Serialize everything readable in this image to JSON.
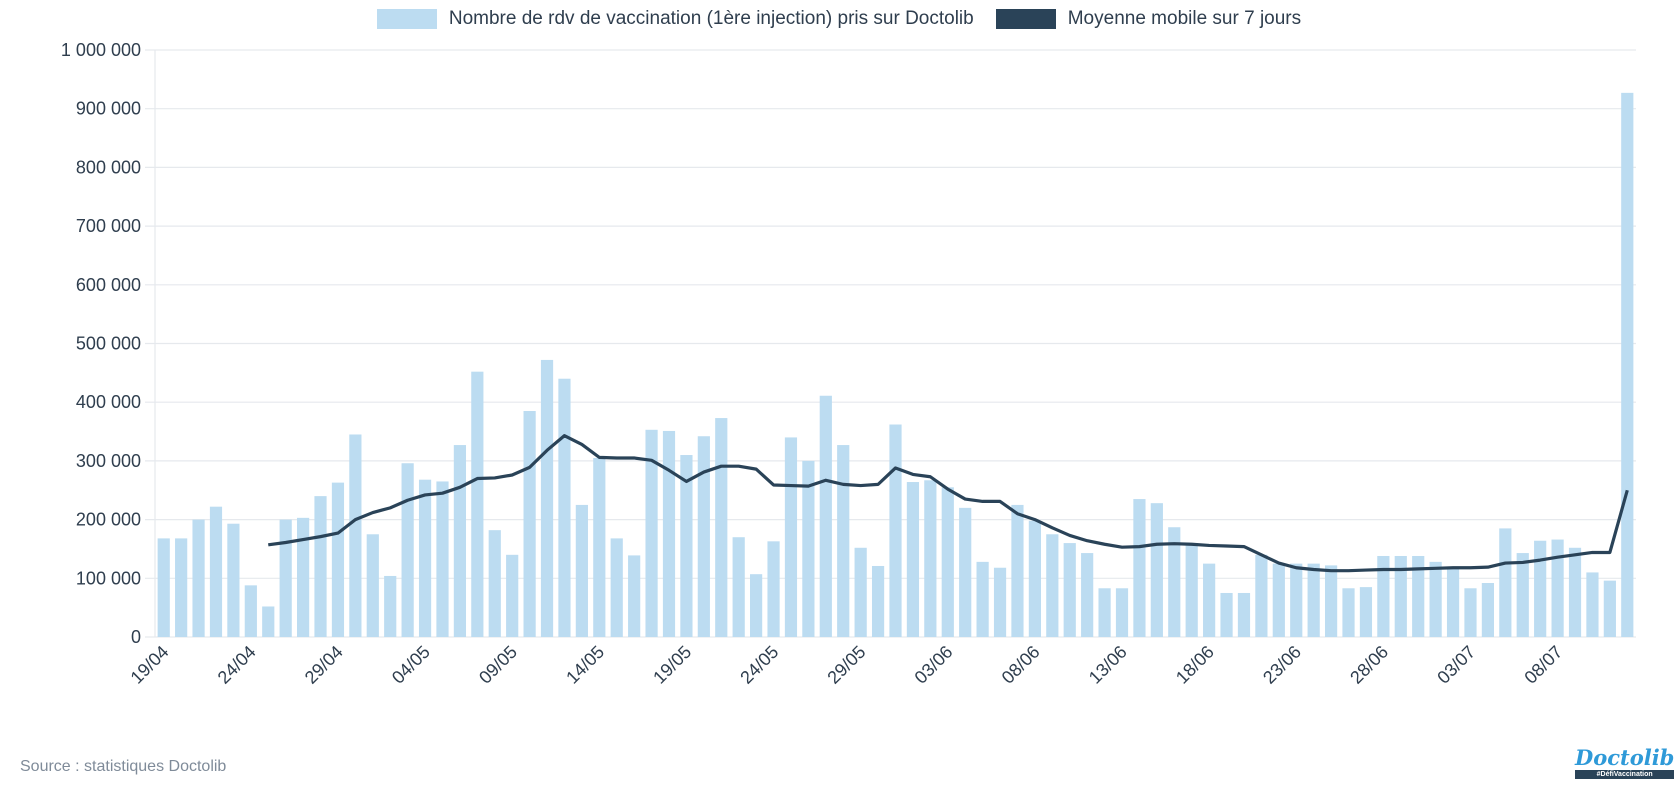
{
  "chart_data": {
    "type": "bar",
    "title": "",
    "xlabel": "",
    "ylabel": "",
    "ylim": [
      0,
      1000000
    ],
    "grid": true,
    "legend_position": "top-center",
    "yticks": [
      0,
      100000,
      200000,
      300000,
      400000,
      500000,
      600000,
      700000,
      800000,
      900000,
      1000000
    ],
    "ytick_labels": [
      "0",
      "100 000",
      "200 000",
      "300 000",
      "400 000",
      "500 000",
      "600 000",
      "700 000",
      "800 000",
      "900 000",
      "1 000 000"
    ],
    "categories": [
      "19/04",
      "20/04",
      "21/04",
      "22/04",
      "23/04",
      "24/04",
      "25/04",
      "26/04",
      "27/04",
      "28/04",
      "29/04",
      "30/04",
      "01/05",
      "02/05",
      "03/05",
      "04/05",
      "05/05",
      "06/05",
      "07/05",
      "08/05",
      "09/05",
      "10/05",
      "11/05",
      "12/05",
      "13/05",
      "14/05",
      "15/05",
      "16/05",
      "17/05",
      "18/05",
      "19/05",
      "20/05",
      "21/05",
      "22/05",
      "23/05",
      "24/05",
      "25/05",
      "26/05",
      "27/05",
      "28/05",
      "29/05",
      "30/05",
      "31/05",
      "01/06",
      "02/06",
      "03/06",
      "04/06",
      "05/06",
      "06/06",
      "07/06",
      "08/06",
      "09/06",
      "10/06",
      "11/06",
      "12/06",
      "13/06",
      "14/06",
      "15/06",
      "16/06",
      "17/06",
      "18/06",
      "19/06",
      "20/06",
      "21/06",
      "22/06",
      "23/06",
      "24/06",
      "25/06",
      "26/06",
      "27/06",
      "28/06",
      "29/06",
      "30/06",
      "01/07",
      "02/07",
      "03/07",
      "04/07",
      "05/07",
      "06/07",
      "07/07",
      "08/07",
      "09/07",
      "10/07",
      "11/07",
      "12/07"
    ],
    "xtick_labels": [
      "19/04",
      "24/04",
      "29/04",
      "04/05",
      "09/05",
      "14/05",
      "19/05",
      "24/05",
      "29/05",
      "03/06",
      "08/06",
      "13/06",
      "18/06",
      "23/06",
      "28/06",
      "03/07",
      "08/07"
    ],
    "series": [
      {
        "name": "Nombre de rdv de vaccination (1ère injection) pris sur Doctolib",
        "type": "bar",
        "color": "#bcdcf1",
        "values": [
          168000,
          168000,
          200000,
          222000,
          193000,
          88000,
          52000,
          200000,
          203000,
          240000,
          263000,
          345000,
          175000,
          104000,
          296000,
          268000,
          265000,
          327000,
          452000,
          182000,
          140000,
          385000,
          472000,
          440000,
          225000,
          305000,
          168000,
          139000,
          353000,
          351000,
          310000,
          342000,
          373000,
          170000,
          107000,
          163000,
          340000,
          300000,
          411000,
          327000,
          152000,
          121000,
          362000,
          264000,
          267000,
          255000,
          220000,
          128000,
          118000,
          225000,
          198000,
          175000,
          160000,
          143000,
          83000,
          83000,
          235000,
          228000,
          187000,
          160000,
          125000,
          75000,
          75000,
          140000,
          125000,
          125000,
          125000,
          122000,
          83000,
          85000,
          138000,
          138000,
          138000,
          128000,
          118000,
          83000,
          92000,
          185000,
          143000,
          164000,
          166000,
          152000,
          110000,
          96000,
          927000
        ]
      },
      {
        "name": "Moyenne mobile sur 7 jours",
        "type": "line",
        "color": "#2a4358",
        "values": [
          null,
          null,
          null,
          null,
          null,
          null,
          157000,
          161000,
          166000,
          171000,
          177000,
          200000,
          212000,
          220000,
          233000,
          242000,
          245000,
          255000,
          270000,
          271000,
          276000,
          289000,
          318000,
          343000,
          328000,
          306000,
          305000,
          305000,
          301000,
          284000,
          265000,
          281000,
          291000,
          291000,
          286000,
          259000,
          258000,
          257000,
          267000,
          260000,
          258000,
          260000,
          288000,
          277000,
          273000,
          252000,
          235000,
          231000,
          231000,
          210000,
          200000,
          186000,
          173000,
          164000,
          158000,
          153000,
          154000,
          158000,
          159000,
          158000,
          156000,
          155000,
          154000,
          140000,
          126000,
          118000,
          115000,
          113000,
          113000,
          114000,
          115000,
          115000,
          116000,
          117000,
          118000,
          118000,
          119000,
          126000,
          127000,
          131000,
          136000,
          140000,
          144000,
          144000,
          250000
        ]
      }
    ]
  },
  "legend": {
    "bars_label": "Nombre de rdv de vaccination (1ère injection) pris sur Doctolib",
    "line_label": "Moyenne mobile sur 7 jours"
  },
  "footer": {
    "source": "Source : statistiques Doctolib",
    "logo_text": "Doctolib",
    "logo_tag": "#DéfiVaccination"
  }
}
